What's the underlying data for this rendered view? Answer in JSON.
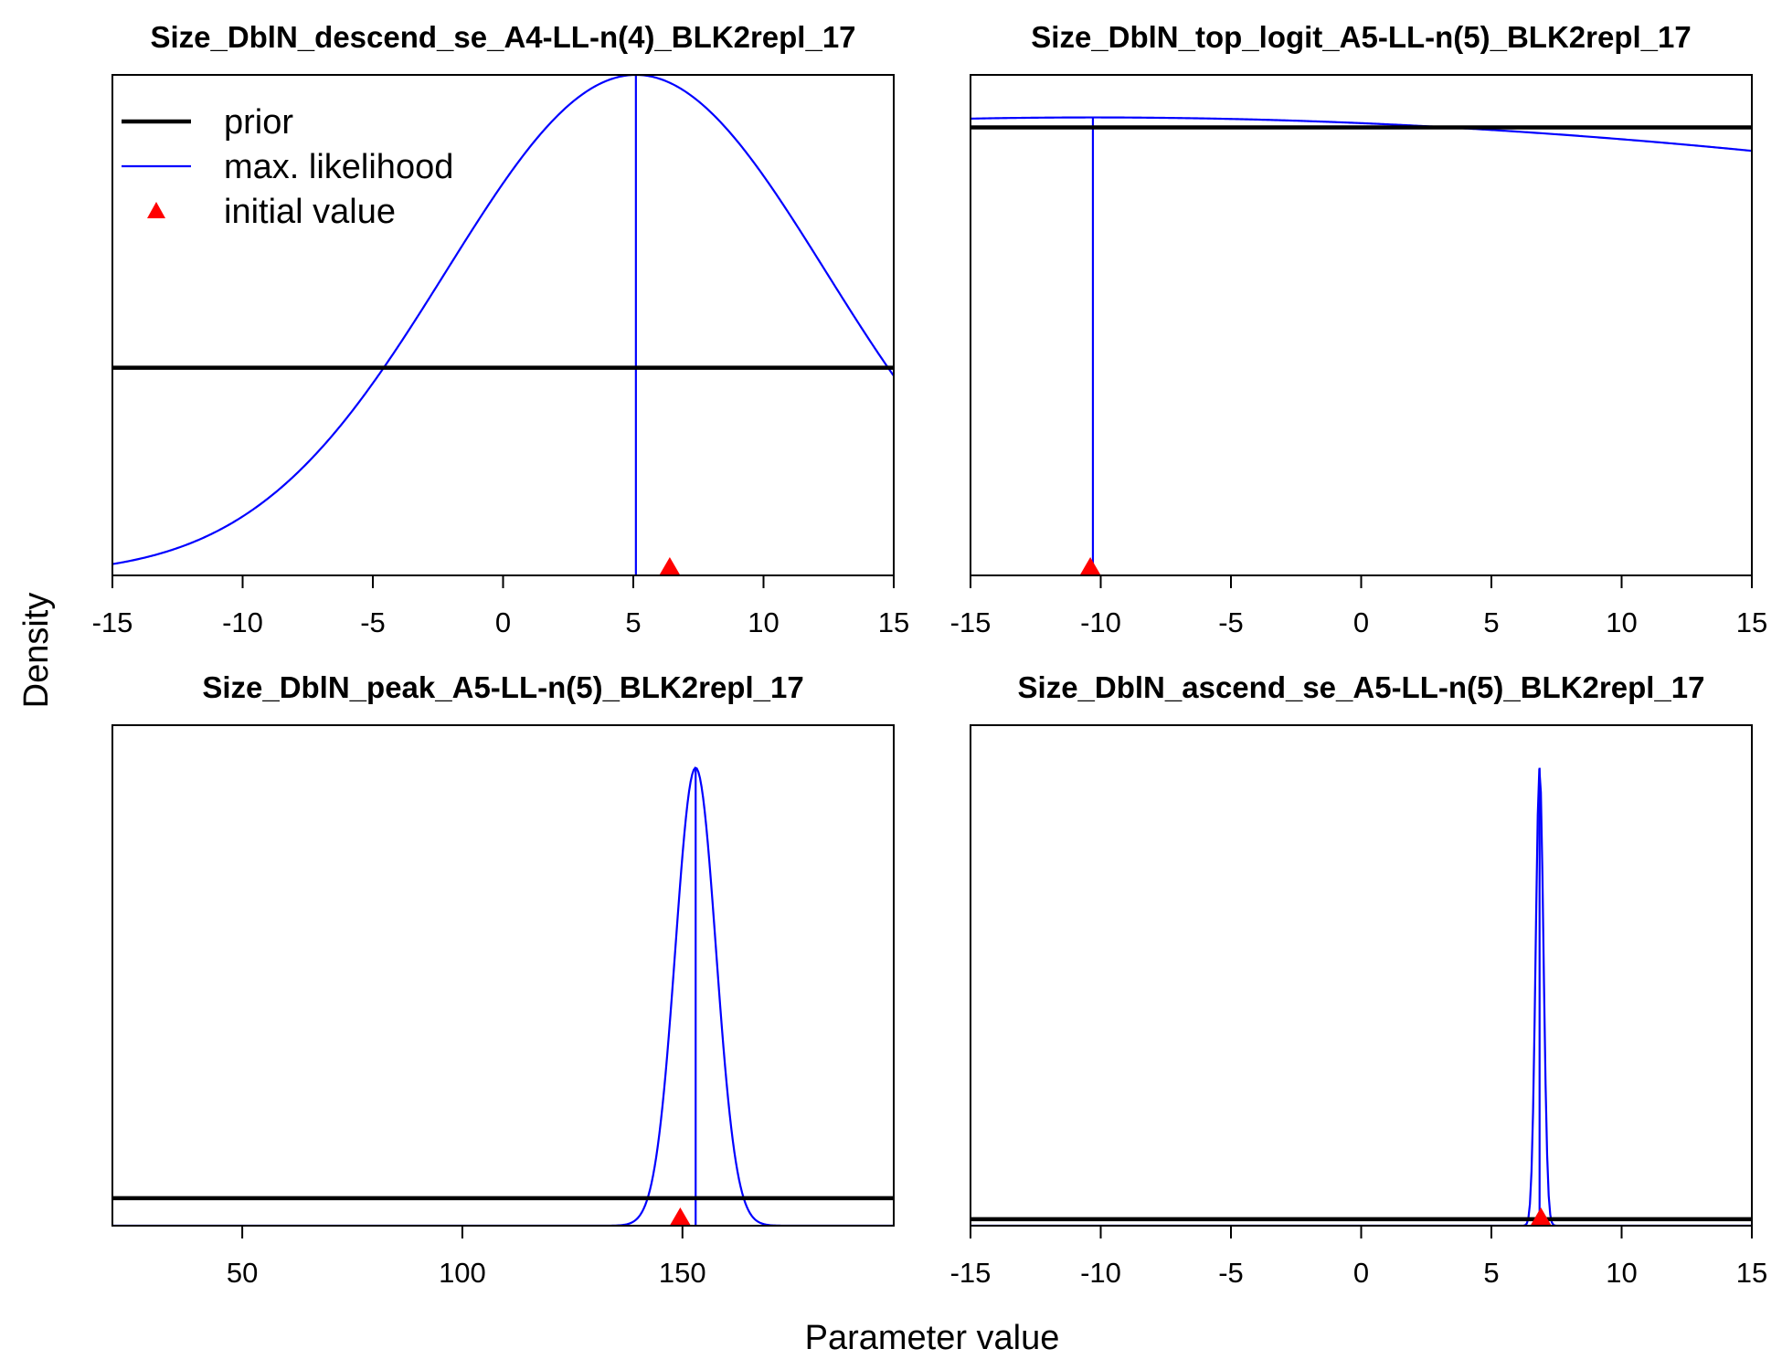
{
  "figure": {
    "xlabel": "Parameter value",
    "ylabel": "Density",
    "legend": {
      "placement": "top-left of first panel",
      "entries": [
        {
          "label": "prior",
          "symbol": "thick-line",
          "color": "#000000"
        },
        {
          "label": "max. likelihood",
          "symbol": "thin-line",
          "color": "#0000ff"
        },
        {
          "label": "initial value",
          "symbol": "triangle",
          "color": "#ff0000"
        }
      ]
    },
    "colors": {
      "prior": "#000000",
      "max_likelihood": "#0000ff",
      "initial_value": "#ff0000"
    }
  },
  "chart_data": [
    {
      "type": "line",
      "title": "Size_DblN_descend_se_A4-LL-n(4)_BLK2repl_17",
      "xlim": [
        -15,
        15
      ],
      "xticks": [
        -15,
        -10,
        -5,
        0,
        5,
        10,
        15
      ],
      "ylim": [
        0,
        1
      ],
      "prior_level": 0.415,
      "likelihood": {
        "shape": "normal",
        "mean": 5.1,
        "sd": 7.3,
        "peak": 1.0
      },
      "mle": 5.1,
      "initial_value": 6.4
    },
    {
      "type": "line",
      "title": "Size_DblN_top_logit_A5-LL-n(5)_BLK2repl_17",
      "xlim": [
        -15,
        15
      ],
      "xticks": [
        -15,
        -10,
        -5,
        0,
        5,
        10,
        15
      ],
      "ylim": [
        0,
        1
      ],
      "prior_level": 0.895,
      "likelihood": {
        "shape": "normal",
        "mean": -10.3,
        "sd": 65,
        "peak": 0.915
      },
      "mle": -10.3,
      "initial_value": -10.4
    },
    {
      "type": "line",
      "title": "Size_DblN_peak_A5-LL-n(5)_BLK2repl_17",
      "xlim": [
        20.5,
        198
      ],
      "xticks": [
        50,
        100,
        150
      ],
      "ylim": [
        0,
        1
      ],
      "prior_level": 0.055,
      "likelihood": {
        "shape": "normal",
        "mean": 153.0,
        "sd": 4.6,
        "peak": 0.915
      },
      "mle": 153.0,
      "initial_value": 149.5
    },
    {
      "type": "line",
      "title": "Size_DblN_ascend_se_A5-LL-n(5)_BLK2repl_17",
      "xlim": [
        -15,
        15
      ],
      "xticks": [
        -15,
        -10,
        -5,
        0,
        5,
        10,
        15
      ],
      "ylim": [
        0,
        1
      ],
      "prior_level": 0.013,
      "likelihood": {
        "shape": "normal",
        "mean": 6.85,
        "sd": 0.15,
        "peak": 0.915
      },
      "mle": 6.85,
      "initial_value": 6.9
    }
  ]
}
